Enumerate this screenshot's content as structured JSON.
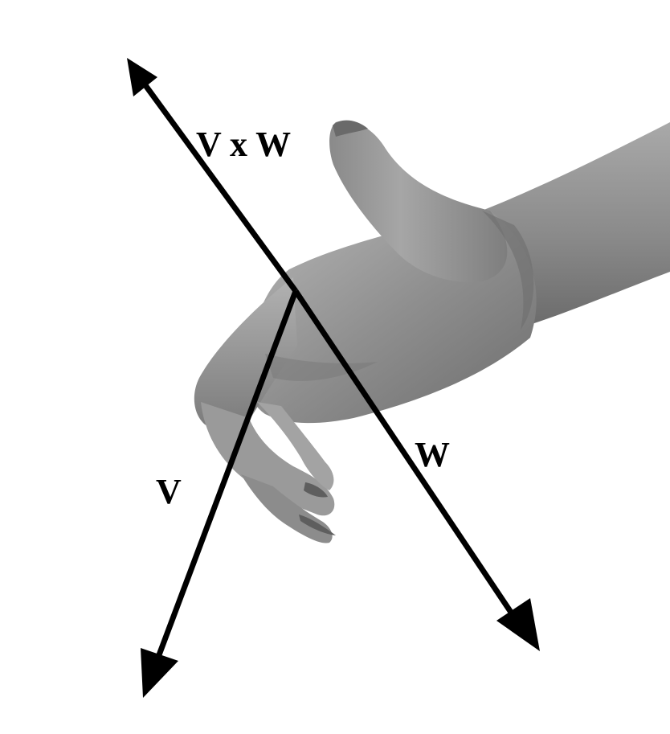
{
  "figure": {
    "labels": {
      "cross": "V x W",
      "w": "W",
      "v": "V"
    },
    "colors": {
      "background": "#ffffff",
      "vector": "#000000",
      "skin_light": "#b4b4b4",
      "skin_mid": "#8e8e8e",
      "skin_dark": "#5f5f5f"
    },
    "icons": {
      "hand": "right-hand-rule-hand"
    }
  }
}
